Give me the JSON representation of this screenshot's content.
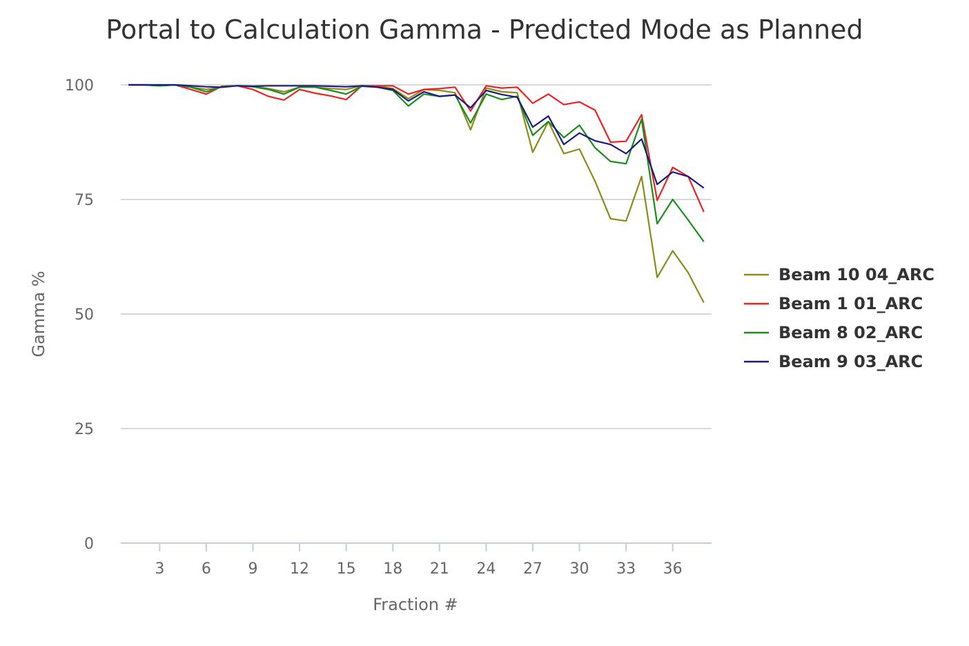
{
  "chart_data": {
    "type": "line",
    "title": "Portal to Calculation Gamma - Predicted Mode as Planned",
    "xlabel": "Fraction #",
    "ylabel": "Gamma %",
    "x": [
      1,
      2,
      3,
      4,
      5,
      6,
      7,
      8,
      9,
      10,
      11,
      12,
      13,
      14,
      15,
      16,
      17,
      18,
      19,
      20,
      21,
      22,
      23,
      24,
      25,
      26,
      27,
      28,
      29,
      30,
      31,
      32,
      33,
      34,
      35,
      36,
      37,
      38
    ],
    "x_ticks": [
      3,
      6,
      9,
      12,
      15,
      18,
      21,
      24,
      27,
      30,
      33,
      36
    ],
    "y_ticks": [
      0,
      25,
      50,
      75,
      100
    ],
    "ylim": [
      0,
      100
    ],
    "xlim": [
      0.5,
      38.5
    ],
    "grid": true,
    "legend_position": "right",
    "series": [
      {
        "name": "Beam 10 04_ARC",
        "color": "#8b8b1a",
        "values": [
          100,
          100,
          99.8,
          100,
          99.5,
          99,
          99.5,
          99.8,
          99.7,
          99.2,
          98.5,
          99.5,
          99.5,
          99.2,
          99,
          99.8,
          99.7,
          99.2,
          97,
          99,
          98.8,
          98.3,
          90.2,
          99.3,
          98.5,
          98.3,
          85.3,
          92,
          85,
          86,
          79,
          70.8,
          70.3,
          80,
          58,
          63.8,
          59,
          52.5
        ]
      },
      {
        "name": "Beam 1 01_ARC",
        "color": "#ee2222",
        "values": [
          100,
          100,
          100,
          100,
          99,
          98,
          99.7,
          99.8,
          99,
          97.5,
          96.7,
          99,
          98.2,
          97.6,
          96.8,
          99.8,
          99.8,
          99.8,
          98,
          99,
          99.2,
          99.5,
          94.3,
          99.8,
          99.3,
          99.5,
          96,
          98,
          95.7,
          96.3,
          94.5,
          87.5,
          87.7,
          93.5,
          74.8,
          82,
          80,
          72.3
        ]
      },
      {
        "name": "Beam 8 02_ARC",
        "color": "#1a8c1a",
        "values": [
          100,
          100,
          99.8,
          100,
          99.5,
          98.5,
          99.6,
          99.8,
          99.6,
          99,
          98,
          99.5,
          99.5,
          98.8,
          98,
          99.7,
          99.5,
          98.8,
          95.4,
          98,
          97.5,
          97.8,
          91.7,
          98,
          96.8,
          97.5,
          89,
          92,
          88.5,
          91.2,
          86.3,
          83.3,
          82.8,
          92.5,
          69.7,
          75,
          70.5,
          65.8
        ]
      },
      {
        "name": "Beam 9 03_ARC",
        "color": "#1a1a80",
        "values": [
          100,
          100,
          100,
          100,
          99.8,
          99.6,
          99.5,
          99.8,
          99.7,
          99.8,
          99.8,
          99.8,
          99.8,
          99.7,
          99.6,
          99.8,
          99.5,
          99,
          96.5,
          98.5,
          97.5,
          97.8,
          95,
          98.8,
          97.9,
          97.3,
          90.8,
          93.2,
          87,
          89.5,
          87.8,
          87,
          85,
          88.2,
          78.3,
          81,
          80,
          77.5
        ]
      }
    ]
  }
}
